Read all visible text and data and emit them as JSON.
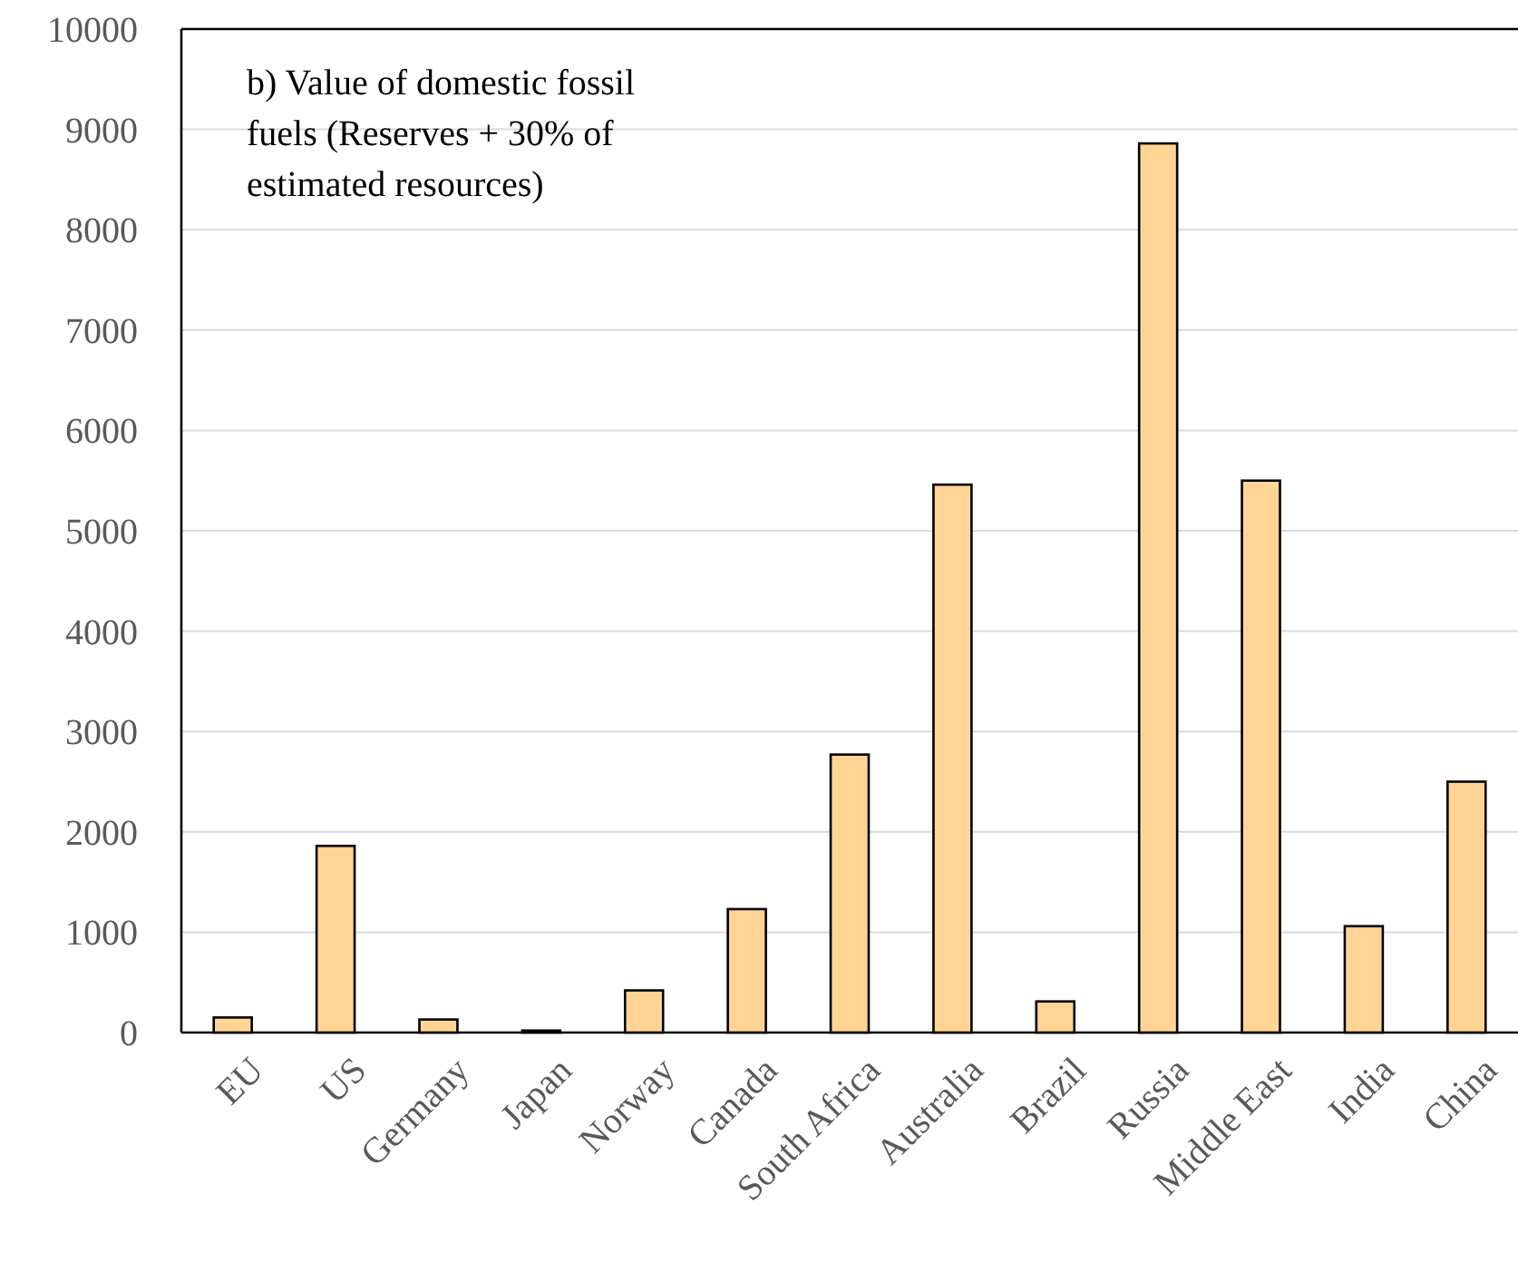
{
  "chart_data": {
    "type": "bar",
    "annotations": [
      "b) Value of domestic fossil fuels (Reserves + 30% of estimated resources)"
    ],
    "categories": [
      "EU",
      "US",
      "Germany",
      "Japan",
      "Norway",
      "Canada",
      "South Africa",
      "Australia",
      "Brazil",
      "Russia",
      "Middle East",
      "India",
      "China"
    ],
    "values": [
      150,
      1860,
      130,
      20,
      420,
      1230,
      2770,
      5460,
      310,
      8860,
      5500,
      1060,
      2500
    ],
    "color": "#ffd494",
    "ylim": [
      0,
      10000
    ],
    "yticks": [
      0,
      1000,
      2000,
      3000,
      4000,
      5000,
      6000,
      7000,
      8000,
      9000,
      10000
    ],
    "grid": "y"
  }
}
